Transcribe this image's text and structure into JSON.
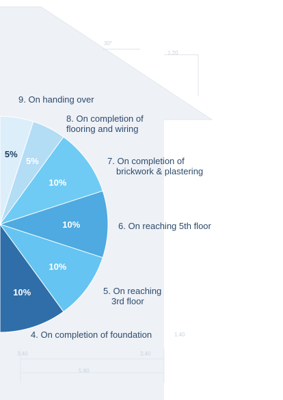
{
  "chart_data": {
    "type": "pie",
    "categories": [
      "9. On handing over",
      "8. On completion of\nflooring and wiring",
      "7. On completion of\nbrickwork & plastering",
      "6. On reaching 5th floor",
      "5. On reaching\n3rd floor",
      "4. On completion of foundation"
    ],
    "values": [
      5,
      5,
      10,
      10,
      10,
      10
    ],
    "value_labels": [
      "5%",
      "5%",
      "10%",
      "10%",
      "10%",
      "10%"
    ],
    "colors": [
      "#ddeefb",
      "#b3dcf5",
      "#6fcbf4",
      "#4eaae0",
      "#65c4f1",
      "#2f6ea8"
    ],
    "blueprint_labels": [
      "30°",
      "1.20",
      "3.40",
      "3.40",
      "5.80",
      "1.40"
    ]
  }
}
